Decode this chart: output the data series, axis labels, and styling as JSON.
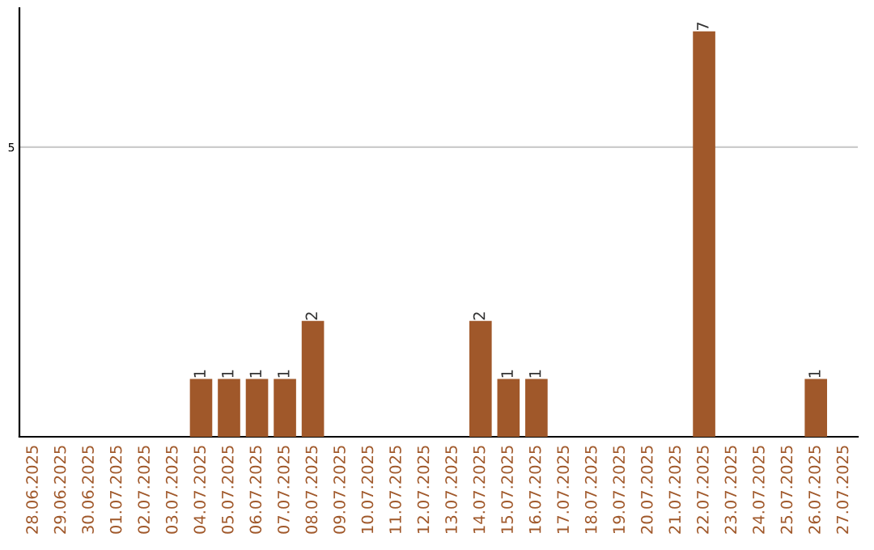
{
  "chart_data": {
    "type": "bar",
    "categories": [
      "28.06.2025",
      "29.06.2025",
      "30.06.2025",
      "01.07.2025",
      "02.07.2025",
      "03.07.2025",
      "04.07.2025",
      "05.07.2025",
      "06.07.2025",
      "07.07.2025",
      "08.07.2025",
      "09.07.2025",
      "10.07.2025",
      "11.07.2025",
      "12.07.2025",
      "13.07.2025",
      "14.07.2025",
      "15.07.2025",
      "16.07.2025",
      "17.07.2025",
      "18.07.2025",
      "19.07.2025",
      "20.07.2025",
      "21.07.2025",
      "22.07.2025",
      "23.07.2025",
      "24.07.2025",
      "25.07.2025",
      "26.07.2025",
      "27.07.2025"
    ],
    "values": [
      0,
      0,
      0,
      0,
      0,
      0,
      1,
      1,
      1,
      1,
      2,
      0,
      0,
      0,
      0,
      0,
      2,
      1,
      1,
      0,
      0,
      0,
      0,
      0,
      7,
      0,
      0,
      0,
      1,
      0
    ],
    "value_labels": [
      null,
      null,
      null,
      null,
      null,
      null,
      "1",
      "1",
      "1",
      "1",
      "2",
      null,
      null,
      null,
      null,
      null,
      "2",
      "1",
      "1",
      null,
      null,
      null,
      null,
      null,
      "7",
      null,
      null,
      null,
      "1",
      null
    ],
    "color": "#a0582a",
    "ylim": [
      0,
      7.4
    ],
    "yticks": [
      5
    ],
    "grid": "y",
    "legend": false
  }
}
